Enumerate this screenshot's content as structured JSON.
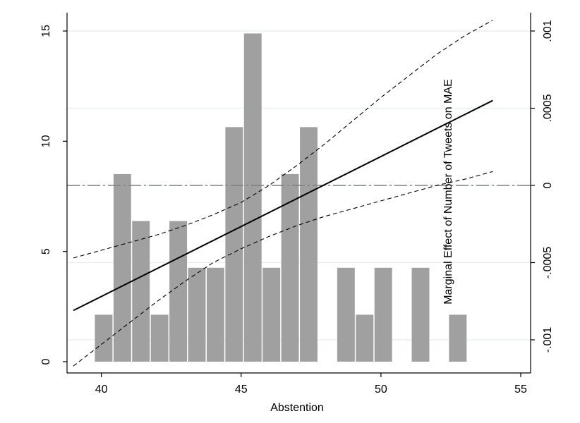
{
  "chart_data": {
    "type": "bar",
    "title": "",
    "xlabel": "Abstention",
    "ylabel": "",
    "ylabel_right": "Marginal Effect of Number of Tweets on MAE",
    "xlim": [
      39,
      55
    ],
    "ylim": [
      0,
      15
    ],
    "ylim_right": [
      -0.00115,
      0.00105
    ],
    "x_ticks": [
      40,
      45,
      50,
      55
    ],
    "y_ticks_left": [
      0,
      5,
      10,
      15
    ],
    "y_ticks_right": [
      -0.001,
      -0.0005,
      0,
      0.0005,
      0.001
    ],
    "y_tick_labels_right": [
      "-.001",
      "-.0005",
      "0",
      ".0005",
      ".001"
    ],
    "grid": true,
    "histogram": {
      "bin_width": 0.6667,
      "bins": [
        {
          "x_start": 39.75,
          "value": 2.13
        },
        {
          "x_start": 40.4167,
          "value": 8.51
        },
        {
          "x_start": 41.0833,
          "value": 6.38
        },
        {
          "x_start": 41.75,
          "value": 2.13
        },
        {
          "x_start": 42.4167,
          "value": 6.38
        },
        {
          "x_start": 43.0833,
          "value": 4.26
        },
        {
          "x_start": 43.75,
          "value": 4.26
        },
        {
          "x_start": 44.4167,
          "value": 10.64
        },
        {
          "x_start": 45.0833,
          "value": 14.89
        },
        {
          "x_start": 45.75,
          "value": 4.26
        },
        {
          "x_start": 46.4167,
          "value": 8.51
        },
        {
          "x_start": 47.0833,
          "value": 10.64
        },
        {
          "x_start": 48.4167,
          "value": 4.26
        },
        {
          "x_start": 49.0833,
          "value": 2.13
        },
        {
          "x_start": 49.75,
          "value": 4.26
        },
        {
          "x_start": 51.0833,
          "value": 4.26
        },
        {
          "x_start": 52.4167,
          "value": 2.13
        }
      ]
    },
    "marginal_effect": {
      "x": [
        39,
        54
      ],
      "estimate": [
        -0.00081,
        0.00055
      ],
      "ci_x": [
        39,
        40,
        41,
        42,
        43,
        44,
        45,
        46,
        47,
        48,
        49,
        50,
        51,
        52,
        53,
        54
      ],
      "ci_upper": [
        -0.00047,
        -0.00042,
        -0.00037,
        -0.00032,
        -0.00026,
        -0.00019,
        -0.00011,
        0.0,
        0.00013,
        0.00027,
        0.00042,
        0.00057,
        0.00071,
        0.00085,
        0.00097,
        0.00107
      ],
      "ci_lower": [
        -0.00117,
        -0.00103,
        -0.00089,
        -0.00075,
        -0.00062,
        -0.0005,
        -0.00041,
        -0.00033,
        -0.00026,
        -0.0002,
        -0.00015,
        -0.0001,
        -5e-05,
        -0.0,
        4e-05,
        9e-05
      ],
      "reference_value": 0
    },
    "colors": {
      "bars": "#a0a0a0",
      "line": "#000000",
      "ci": "#000000",
      "reference": "#7f7f7f",
      "grid": "#e6eded"
    }
  }
}
